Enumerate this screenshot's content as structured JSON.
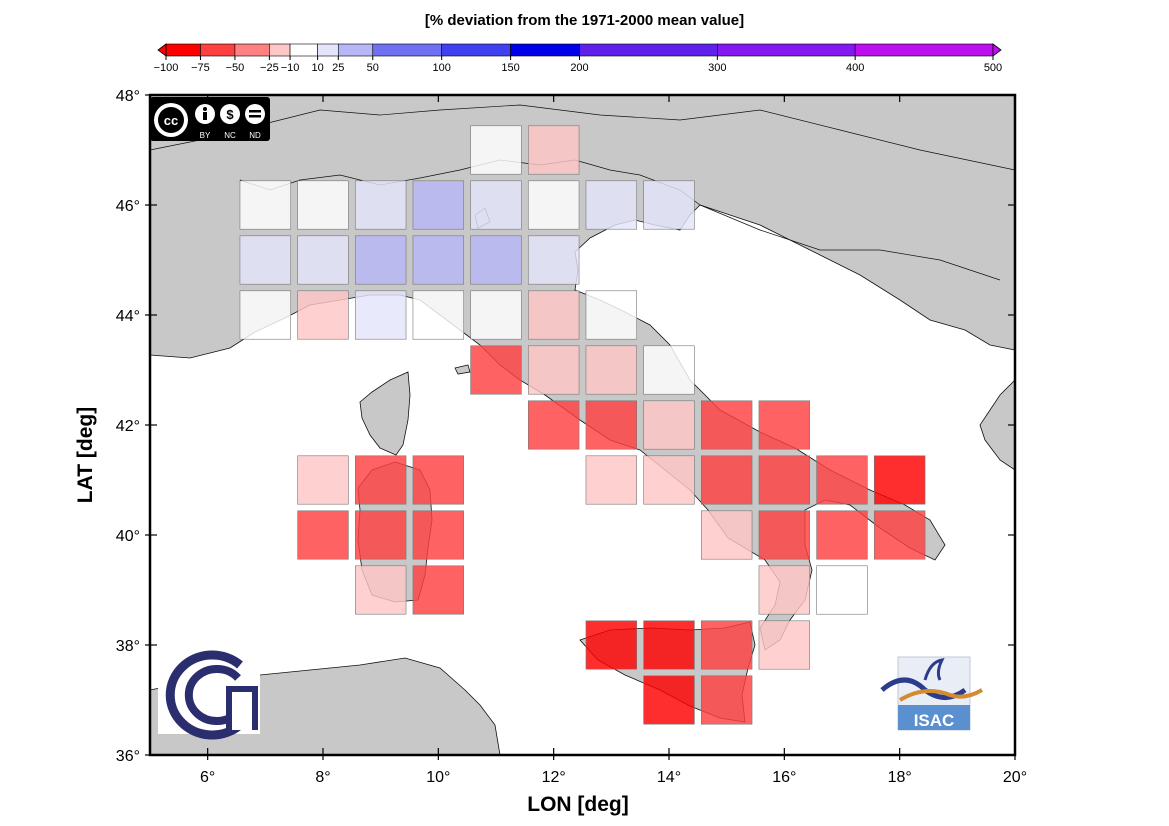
{
  "colorbar": {
    "title": "[% deviation from the 1971-2000 mean value]",
    "ticks": [
      "−100",
      "−75",
      "−50",
      "−25",
      "−10",
      "10",
      "25",
      "50",
      "100",
      "150",
      "200",
      "300",
      "400",
      "500"
    ],
    "tick_values": [
      -100,
      -75,
      -50,
      -25,
      -10,
      10,
      25,
      50,
      100,
      150,
      200,
      300,
      400,
      500
    ],
    "colors": [
      "#ff0000",
      "#ff4040",
      "#ff8080",
      "#ffc6c6",
      "#ffffff",
      "#e4e4fb",
      "#b7b7f7",
      "#7070f2",
      "#4040f0",
      "#0000e8",
      "#6020ec",
      "#8418f0",
      "#bd10f0"
    ]
  },
  "map": {
    "lon_range": [
      5,
      20
    ],
    "lat_range": [
      36,
      48
    ],
    "x_ticks": [
      "6°",
      "8°",
      "10°",
      "12°",
      "14°",
      "16°",
      "18°",
      "20°"
    ],
    "y_ticks": [
      "36°",
      "38°",
      "40°",
      "42°",
      "44°",
      "46°",
      "48°"
    ],
    "xlabel": "LON [deg]",
    "ylabel": "LAT [deg]",
    "land_color": "#c8c8c8",
    "sea_color": "#ffffff",
    "cells": [
      {
        "lon": 11,
        "lat": 47,
        "v": 0
      },
      {
        "lon": 12,
        "lat": 47,
        "v": -20
      },
      {
        "lon": 7,
        "lat": 46,
        "v": 0
      },
      {
        "lon": 8,
        "lat": 46,
        "v": 0
      },
      {
        "lon": 9,
        "lat": 46,
        "v": 15
      },
      {
        "lon": 10,
        "lat": 46,
        "v": 35
      },
      {
        "lon": 11,
        "lat": 46,
        "v": 15
      },
      {
        "lon": 12,
        "lat": 46,
        "v": 0
      },
      {
        "lon": 13,
        "lat": 46,
        "v": 15
      },
      {
        "lon": 14,
        "lat": 46,
        "v": 15
      },
      {
        "lon": 7,
        "lat": 45,
        "v": 15
      },
      {
        "lon": 8,
        "lat": 45,
        "v": 15
      },
      {
        "lon": 9,
        "lat": 45,
        "v": 35
      },
      {
        "lon": 10,
        "lat": 45,
        "v": 35
      },
      {
        "lon": 11,
        "lat": 45,
        "v": 35
      },
      {
        "lon": 12,
        "lat": 45,
        "v": 15
      },
      {
        "lon": 7,
        "lat": 44,
        "v": 0
      },
      {
        "lon": 8,
        "lat": 44,
        "v": -20
      },
      {
        "lon": 9,
        "lat": 44,
        "v": 15
      },
      {
        "lon": 10,
        "lat": 44,
        "v": 0
      },
      {
        "lon": 11,
        "lat": 44,
        "v": 0
      },
      {
        "lon": 12,
        "lat": 44,
        "v": -20
      },
      {
        "lon": 13,
        "lat": 44,
        "v": 0
      },
      {
        "lon": 11,
        "lat": 43,
        "v": -55
      },
      {
        "lon": 12,
        "lat": 43,
        "v": -20
      },
      {
        "lon": 13,
        "lat": 43,
        "v": -20
      },
      {
        "lon": 14,
        "lat": 43,
        "v": 0
      },
      {
        "lon": 12,
        "lat": 42,
        "v": -55
      },
      {
        "lon": 13,
        "lat": 42,
        "v": -55
      },
      {
        "lon": 14,
        "lat": 42,
        "v": -20
      },
      {
        "lon": 15,
        "lat": 42,
        "v": -55
      },
      {
        "lon": 16,
        "lat": 42,
        "v": -55
      },
      {
        "lon": 8,
        "lat": 41,
        "v": -20
      },
      {
        "lon": 9,
        "lat": 41,
        "v": -55
      },
      {
        "lon": 10,
        "lat": 41,
        "v": -55
      },
      {
        "lon": 13,
        "lat": 41,
        "v": -20
      },
      {
        "lon": 14,
        "lat": 41,
        "v": -20
      },
      {
        "lon": 15,
        "lat": 41,
        "v": -55
      },
      {
        "lon": 16,
        "lat": 41,
        "v": -55
      },
      {
        "lon": 17,
        "lat": 41,
        "v": -55
      },
      {
        "lon": 18,
        "lat": 41,
        "v": -80
      },
      {
        "lon": 8,
        "lat": 40,
        "v": -55
      },
      {
        "lon": 9,
        "lat": 40,
        "v": -55
      },
      {
        "lon": 10,
        "lat": 40,
        "v": -55
      },
      {
        "lon": 15,
        "lat": 40,
        "v": -20
      },
      {
        "lon": 16,
        "lat": 40,
        "v": -55
      },
      {
        "lon": 17,
        "lat": 40,
        "v": -55
      },
      {
        "lon": 18,
        "lat": 40,
        "v": -55
      },
      {
        "lon": 9,
        "lat": 39,
        "v": -20
      },
      {
        "lon": 10,
        "lat": 39,
        "v": -55
      },
      {
        "lon": 16,
        "lat": 39,
        "v": -20
      },
      {
        "lon": 17,
        "lat": 39,
        "v": 0
      },
      {
        "lon": 13,
        "lat": 38,
        "v": -80
      },
      {
        "lon": 14,
        "lat": 38,
        "v": -80
      },
      {
        "lon": 15,
        "lat": 38,
        "v": -55
      },
      {
        "lon": 16,
        "lat": 38,
        "v": -20
      },
      {
        "lon": 14,
        "lat": 37,
        "v": -80
      },
      {
        "lon": 15,
        "lat": 37,
        "v": -55
      }
    ]
  },
  "license": {
    "tags": [
      "BY",
      "NC",
      "ND"
    ]
  },
  "logos": {
    "isac": "ISAC"
  }
}
